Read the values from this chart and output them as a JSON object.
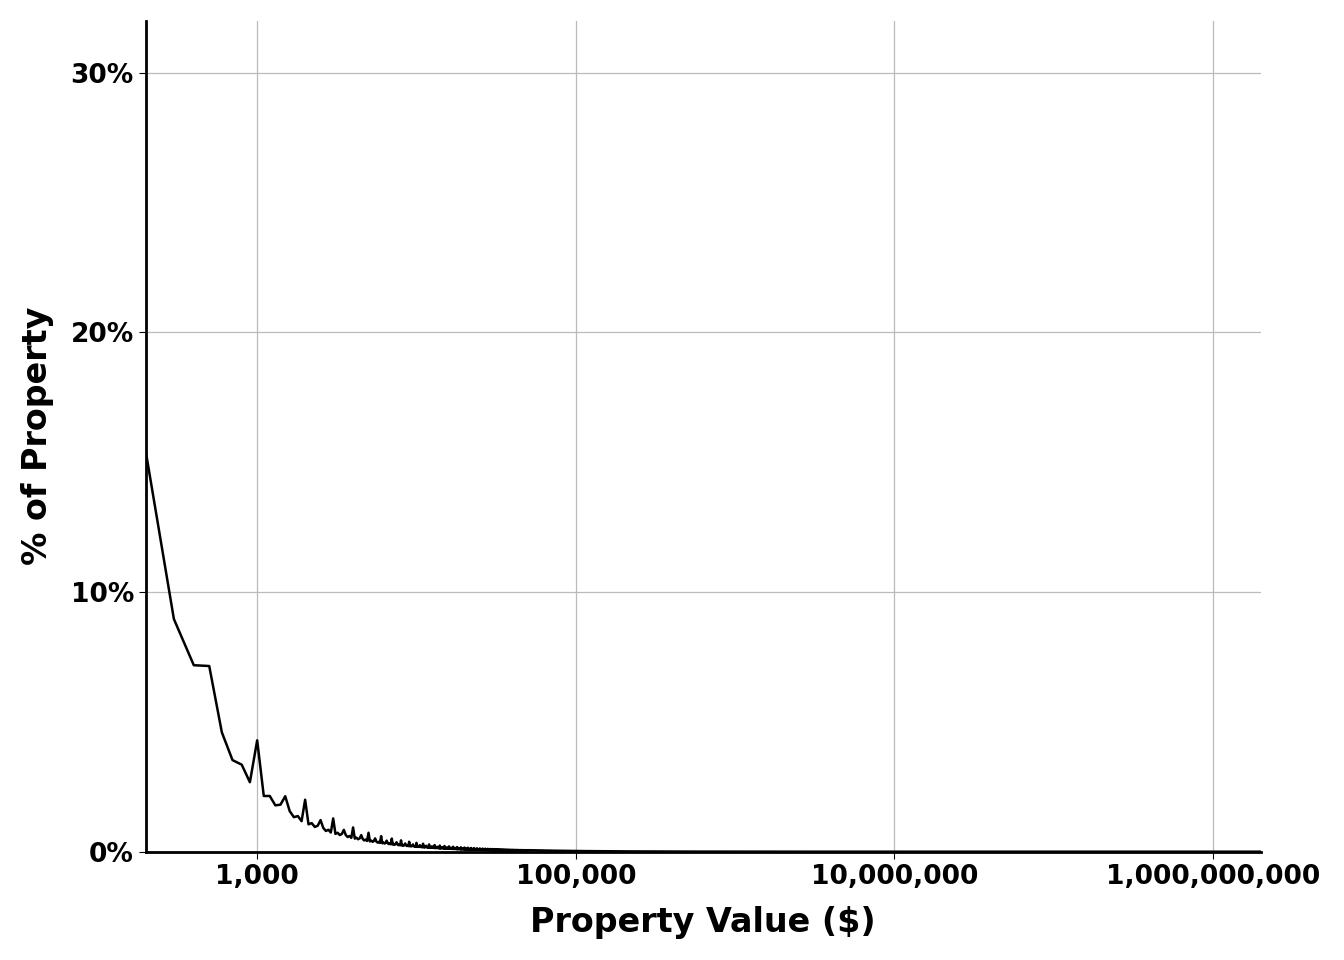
{
  "xlabel": "Property Value ($)",
  "ylabel": "% of Property",
  "line_color": "#000000",
  "line_width": 1.8,
  "background_color": "#ffffff",
  "grid_color": "#bbbbbb",
  "xlim_log": [
    2.3,
    9.3
  ],
  "ylim": [
    0,
    0.32
  ],
  "yticks": [
    0.0,
    0.1,
    0.2,
    0.3
  ],
  "ytick_labels": [
    "0%",
    "10%",
    "20%",
    "30%"
  ],
  "xtick_positions": [
    1000,
    100000,
    10000000,
    1000000000
  ],
  "xtick_labels": [
    "1,000",
    "100,000",
    "10,000,000",
    "1,000,000,000"
  ],
  "xlabel_fontsize": 24,
  "ylabel_fontsize": 24,
  "tick_fontsize": 19,
  "label_fontweight": "bold",
  "spine_linewidth": 2.0
}
